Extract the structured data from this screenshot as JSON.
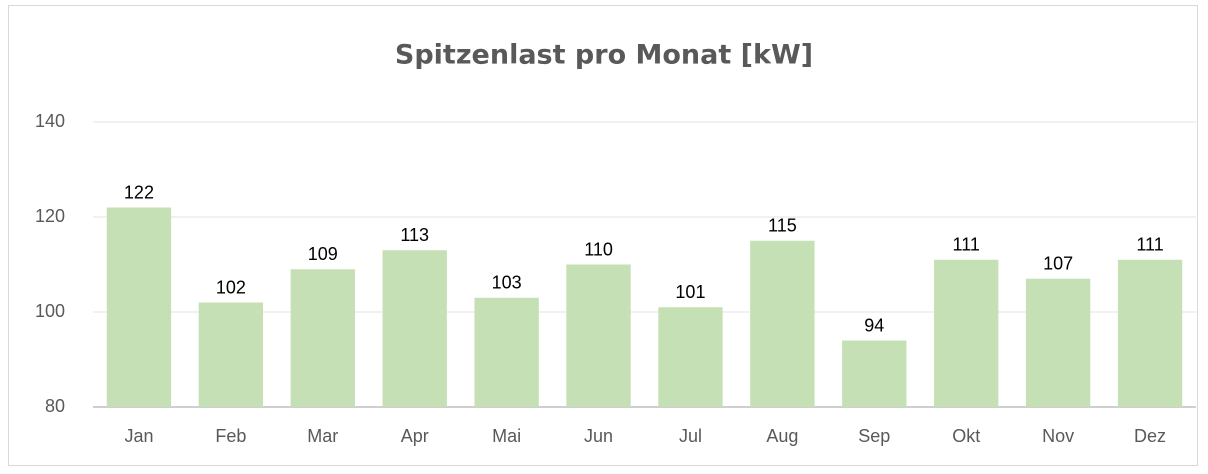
{
  "chart_data": {
    "type": "bar",
    "title": "Spitzenlast pro Monat [kW]",
    "categories": [
      "Jan",
      "Feb",
      "Mar",
      "Apr",
      "Mai",
      "Jun",
      "Jul",
      "Aug",
      "Sep",
      "Okt",
      "Nov",
      "Dez"
    ],
    "values": [
      122,
      102,
      109,
      113,
      103,
      110,
      101,
      115,
      94,
      111,
      107,
      111
    ],
    "color": "#c5e0b4",
    "ylim": [
      80,
      140
    ],
    "yticks": [
      80,
      100,
      120,
      140
    ],
    "grid": true
  }
}
